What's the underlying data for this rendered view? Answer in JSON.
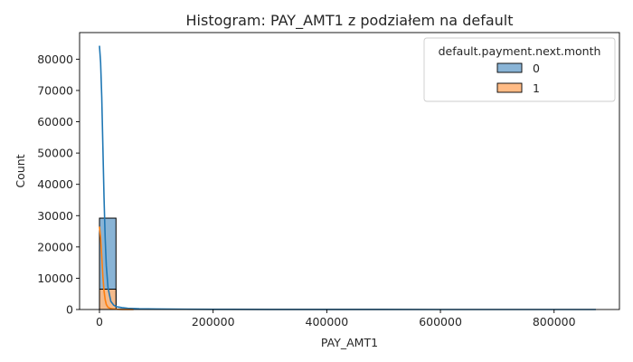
{
  "chart_data": {
    "type": "bar",
    "title": "Histogram: PAY_AMT1 z podziałem na default",
    "xlabel": "PAY_AMT1",
    "ylabel": "Count",
    "xlim": [
      -35000,
      915000
    ],
    "ylim": [
      0,
      88500
    ],
    "xticks": [
      0,
      200000,
      400000,
      600000,
      800000
    ],
    "yticks": [
      0,
      10000,
      20000,
      30000,
      40000,
      50000,
      60000,
      70000,
      80000
    ],
    "bin_width": 29100,
    "bins": [
      0,
      29100,
      58200,
      87300,
      116400,
      145500,
      174600,
      203700,
      232800,
      261900,
      291000,
      320100,
      349200,
      378300,
      407400,
      436500,
      465600,
      494700,
      523800,
      552900,
      582000,
      611100,
      640200,
      669300,
      698400,
      727500,
      756600,
      785700,
      814800,
      843900
    ],
    "legend": {
      "title": "default.payment.next.month",
      "position": "top-right"
    },
    "series": [
      {
        "name": "0",
        "color": "#1f77b4",
        "fill": "#89b4d6",
        "values": [
          29200,
          400,
          120,
          50,
          25,
          12,
          8,
          5,
          4,
          3,
          2,
          2,
          1,
          1,
          1,
          1,
          0,
          0,
          0,
          0,
          0,
          0,
          0,
          0,
          0,
          0,
          0,
          0,
          0,
          1
        ],
        "kde": {
          "x": [
            0,
            2000,
            4000,
            6000,
            8000,
            10000,
            12000,
            15000,
            20000,
            25000,
            30000,
            40000,
            50000,
            70000,
            100000,
            150000,
            200000,
            300000,
            400000,
            500000,
            600000,
            700000,
            800000,
            873552
          ],
          "y": [
            84300,
            79000,
            68000,
            52000,
            36000,
            23000,
            14000,
            7000,
            2600,
            1400,
            900,
            600,
            400,
            250,
            150,
            90,
            60,
            30,
            15,
            8,
            4,
            2,
            1,
            0
          ]
        }
      },
      {
        "name": "1",
        "color": "#ff7f0e",
        "fill": "#ffbb85",
        "values": [
          6500,
          50,
          15,
          6,
          3,
          1,
          1,
          0,
          0,
          0,
          0,
          0,
          0,
          0,
          0,
          0,
          0,
          0,
          0,
          0,
          0,
          0,
          0,
          0,
          0,
          0,
          0,
          0,
          0,
          0
        ],
        "kde": {
          "x": [
            0,
            2000,
            4000,
            6000,
            8000,
            10000,
            12000,
            15000,
            20000,
            25000,
            30000,
            40000,
            50000,
            60000
          ],
          "y": [
            26500,
            23000,
            17000,
            10500,
            6000,
            3200,
            1600,
            700,
            300,
            150,
            80,
            30,
            10,
            0
          ]
        }
      }
    ]
  }
}
